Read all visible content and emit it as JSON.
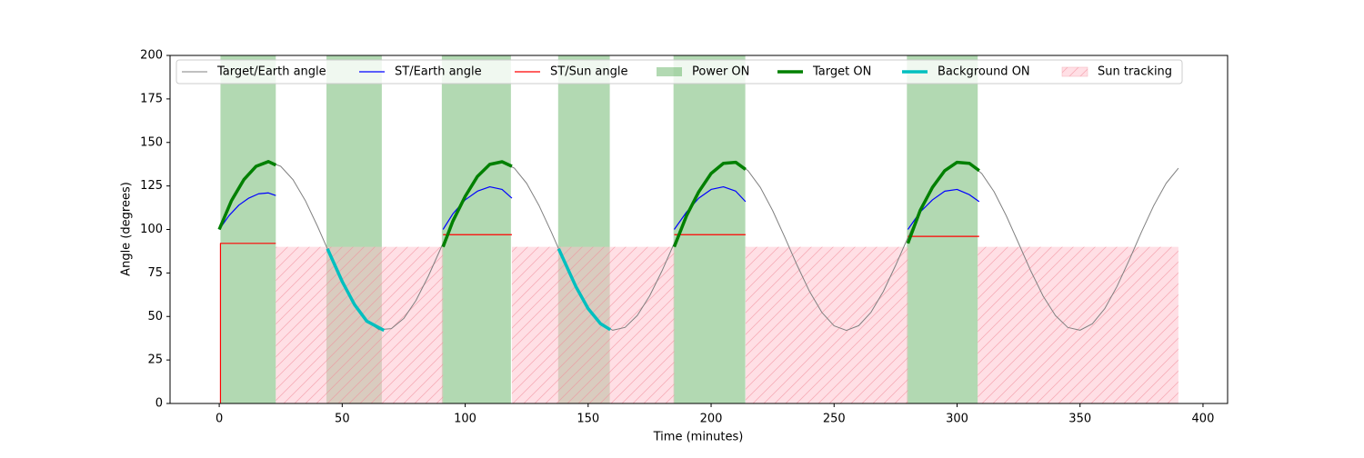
{
  "chart_data": {
    "type": "line",
    "xlabel": "Time (minutes)",
    "ylabel": "Angle (degrees)",
    "xlim": [
      -20,
      410
    ],
    "xticks": [
      0,
      50,
      100,
      150,
      200,
      250,
      300,
      350,
      400
    ],
    "ylim": [
      0,
      200
    ],
    "yticks": [
      0,
      25,
      50,
      75,
      100,
      125,
      150,
      175,
      200
    ],
    "legend": {
      "loc": "upper center",
      "ncol": 7
    },
    "series": [
      {
        "name": "Target/Earth angle",
        "kind": "line",
        "color": "#808080",
        "linewidth": 1,
        "x": [
          0,
          5,
          10,
          15,
          20,
          25,
          30,
          35,
          40,
          45,
          50,
          55,
          60,
          65,
          70,
          75,
          80,
          85,
          90,
          95,
          100,
          105,
          110,
          115,
          120,
          125,
          130,
          135,
          140,
          145,
          150,
          155,
          160,
          165,
          170,
          175,
          180,
          185,
          190,
          195,
          200,
          205,
          210,
          215,
          220,
          225,
          230,
          235,
          240,
          245,
          250,
          255,
          260,
          265,
          270,
          275,
          280,
          285,
          290,
          295,
          300,
          305,
          310,
          315,
          320,
          325,
          330,
          335,
          340,
          345,
          350,
          355,
          360,
          365,
          370,
          375,
          380,
          385,
          390
        ],
        "values": [
          101.7,
          116.6,
          128.6,
          136.3,
          139.0,
          136.3,
          128.6,
          116.6,
          101.7,
          85.6,
          70.1,
          56.8,
          47.3,
          42.4,
          43.0,
          48.8,
          59.2,
          73.1,
          88.9,
          104.8,
          119.0,
          130.5,
          137.4,
          138.9,
          135.2,
          126.5,
          113.8,
          98.6,
          82.4,
          67.2,
          54.5,
          45.9,
          42.1,
          43.7,
          50.6,
          61.8,
          76.1,
          92.1,
          107.9,
          121.7,
          132.2,
          138.0,
          138.6,
          133.8,
          124.2,
          110.9,
          95.4,
          79.3,
          64.4,
          52.4,
          44.6,
          42.0,
          44.7,
          52.4,
          64.3,
          79.3,
          95.3,
          110.9,
          124.2,
          133.8,
          138.6,
          138.0,
          132.2,
          121.8,
          107.9,
          92.1,
          76.1,
          61.7,
          50.5,
          43.7,
          42.1,
          45.8,
          54.4,
          67.2,
          82.4,
          98.6,
          113.8,
          126.5,
          135.2
        ]
      },
      {
        "name": "ST/Earth angle",
        "kind": "line",
        "color": "#0000ff",
        "linewidth": 1.2,
        "x": [
          0,
          4,
          8,
          12,
          16,
          20,
          23,
          57,
          91,
          95,
          100,
          105,
          110,
          115,
          119,
          150,
          185,
          190,
          195,
          200,
          205,
          210,
          214,
          250,
          280,
          285,
          290,
          295,
          300,
          305,
          309
        ],
        "values": [
          100,
          108,
          114,
          118,
          120.5,
          121,
          119.5,
          null,
          100,
          109,
          117,
          122,
          124.5,
          123,
          118,
          null,
          100,
          110,
          118,
          123,
          124.5,
          122,
          116,
          null,
          100,
          110,
          117,
          122,
          123,
          120,
          116
        ]
      },
      {
        "name": "ST/Sun angle",
        "kind": "line",
        "color": "#ff0000",
        "linewidth": 1.2,
        "x": [
          0.5,
          0.5,
          1,
          23,
          57,
          91,
          119,
          150,
          185,
          214,
          250,
          280,
          309
        ],
        "values": [
          0,
          92,
          92,
          92,
          null,
          97,
          97,
          null,
          97,
          97,
          null,
          96,
          96
        ]
      },
      {
        "name": "Power ON",
        "kind": "span",
        "color": "#008000",
        "alpha": 0.3,
        "x_ranges": [
          [
            0.5,
            23
          ],
          [
            43.6,
            66.1
          ],
          [
            90.5,
            118.6
          ],
          [
            137.8,
            158.8
          ],
          [
            184.7,
            213.9
          ],
          [
            279.6,
            308.4
          ]
        ]
      },
      {
        "name": "Target ON",
        "kind": "line",
        "color": "#008000",
        "linewidth": 3.5,
        "x": [
          0,
          5,
          10,
          15,
          20,
          23,
          57,
          91,
          95,
          100,
          105,
          110,
          115,
          119,
          150,
          185,
          190,
          195,
          200,
          205,
          210,
          214,
          250,
          280,
          285,
          290,
          295,
          300,
          305,
          309
        ],
        "values": [
          100,
          116.6,
          128.6,
          136.3,
          139.0,
          137.0,
          null,
          90,
          104.8,
          119.0,
          130.5,
          137.4,
          138.9,
          136.3,
          null,
          90,
          107.9,
          121.7,
          132.2,
          138.0,
          138.6,
          134.5,
          null,
          92,
          110.9,
          124.2,
          133.8,
          138.6,
          138.0,
          133.8
        ]
      },
      {
        "name": "Background ON",
        "kind": "line",
        "color": "#00bfbf",
        "linewidth": 3.5,
        "x": [
          44,
          50,
          55,
          60,
          67,
          100,
          138,
          145,
          150,
          155,
          159
        ],
        "values": [
          88.9,
          70.1,
          56.8,
          47.3,
          42.0,
          null,
          88.9,
          67.2,
          54.5,
          45.9,
          42.4
        ]
      },
      {
        "name": "Sun tracking",
        "kind": "span",
        "color": "#ffc0cb",
        "alpha": 0.5,
        "hatch": true,
        "y_range": [
          0,
          90
        ],
        "x_ranges": [
          [
            23,
            91
          ],
          [
            119,
            185
          ],
          [
            214,
            280
          ],
          [
            308.4,
            390
          ]
        ]
      }
    ]
  }
}
